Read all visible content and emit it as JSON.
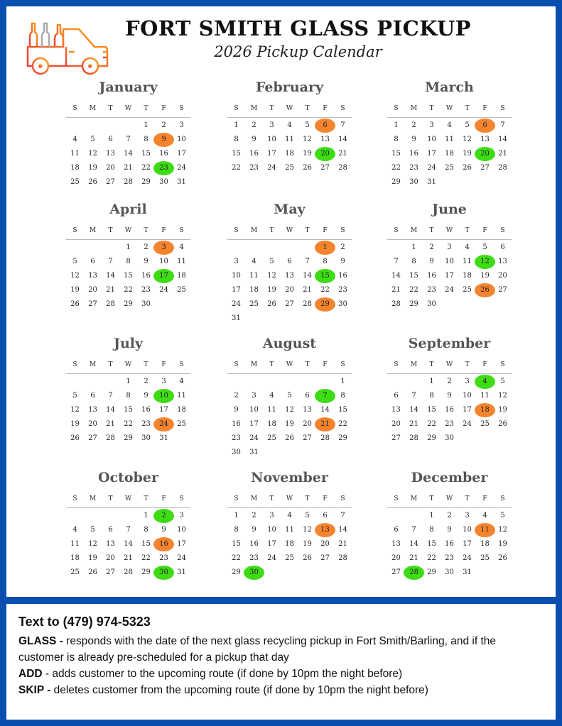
{
  "header": {
    "title": "FORT SMITH GLASS PICKUP",
    "subtitle": "2026 Pickup Calendar"
  },
  "weekday_labels": [
    "S",
    "M",
    "T",
    "W",
    "T",
    "F",
    "S"
  ],
  "colors": {
    "frame": "#0a4fb0",
    "orange_pickup": "#f5842e",
    "green_pickup": "#3edc14"
  },
  "months": [
    {
      "name": "January",
      "start": 4,
      "days": 31,
      "orange": [
        9
      ],
      "green": [
        23
      ]
    },
    {
      "name": "February",
      "start": 0,
      "days": 28,
      "orange": [
        6
      ],
      "green": [
        20
      ]
    },
    {
      "name": "March",
      "start": 0,
      "days": 31,
      "orange": [
        6
      ],
      "green": [
        20
      ]
    },
    {
      "name": "April",
      "start": 3,
      "days": 30,
      "orange": [
        3
      ],
      "green": [
        17
      ]
    },
    {
      "name": "May",
      "start": 5,
      "days": 31,
      "orange": [
        1,
        29
      ],
      "green": [
        15
      ]
    },
    {
      "name": "June",
      "start": 1,
      "days": 30,
      "orange": [
        26
      ],
      "green": [
        12
      ]
    },
    {
      "name": "July",
      "start": 3,
      "days": 31,
      "orange": [
        24
      ],
      "green": [
        10
      ]
    },
    {
      "name": "August",
      "start": 6,
      "days": 31,
      "orange": [
        21
      ],
      "green": [
        7
      ]
    },
    {
      "name": "September",
      "start": 2,
      "days": 30,
      "orange": [
        18
      ],
      "green": [
        4
      ]
    },
    {
      "name": "October",
      "start": 4,
      "days": 31,
      "orange": [
        16
      ],
      "green": [
        2,
        30
      ]
    },
    {
      "name": "November",
      "start": 0,
      "days": 30,
      "orange": [
        13
      ],
      "green": [
        30
      ]
    },
    {
      "name": "December",
      "start": 2,
      "days": 31,
      "orange": [
        11
      ],
      "green": [
        28
      ]
    }
  ],
  "footer": {
    "heading": "Text to (479) 974-5323",
    "commands": [
      {
        "keyword": "GLASS -",
        "text": " responds with the date of the next glass recycling pickup in Fort Smith/Barling, and if the customer is already pre-scheduled for a pickup that day"
      },
      {
        "keyword": "ADD",
        "text": " - adds customer to the upcoming route (if done by 10pm the night before)"
      },
      {
        "keyword": "SKIP -",
        "text": " deletes customer from the upcoming route (if done by 10pm the night before)"
      }
    ]
  }
}
